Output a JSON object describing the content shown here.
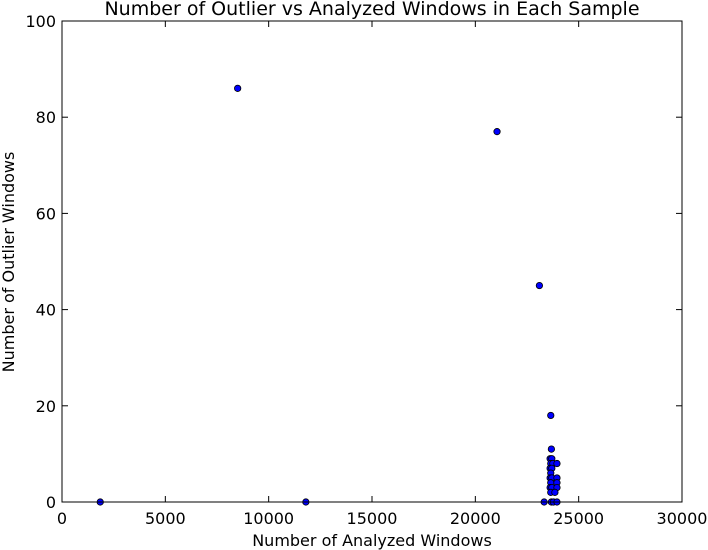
{
  "chart_data": {
    "type": "scatter",
    "title": "Number of Outlier vs Analyzed Windows in Each Sample",
    "xlabel": "Number of Analyzed Windows",
    "ylabel": "Number of Outlier Windows",
    "xlim": [
      0,
      30000
    ],
    "ylim": [
      0,
      100
    ],
    "x_ticks": [
      0,
      5000,
      10000,
      15000,
      20000,
      25000,
      30000
    ],
    "y_ticks": [
      0,
      20,
      40,
      60,
      80,
      100
    ],
    "x_tick_labels": [
      "0",
      "5000",
      "10000",
      "15000",
      "20000",
      "25000",
      "30000"
    ],
    "y_tick_labels": [
      "0",
      "20",
      "40",
      "60",
      "80",
      "100"
    ],
    "grid": false,
    "legend": "none",
    "marker_color": "#0000ff",
    "marker_edge_color": "#000000",
    "points": [
      {
        "x": 1850,
        "y": 0
      },
      {
        "x": 8500,
        "y": 86
      },
      {
        "x": 11800,
        "y": 0
      },
      {
        "x": 21050,
        "y": 77
      },
      {
        "x": 23100,
        "y": 45
      },
      {
        "x": 23650,
        "y": 18
      },
      {
        "x": 23680,
        "y": 11
      },
      {
        "x": 23620,
        "y": 9
      },
      {
        "x": 23700,
        "y": 9
      },
      {
        "x": 23650,
        "y": 8
      },
      {
        "x": 23750,
        "y": 8
      },
      {
        "x": 23950,
        "y": 8
      },
      {
        "x": 23620,
        "y": 7
      },
      {
        "x": 23700,
        "y": 7
      },
      {
        "x": 23650,
        "y": 6
      },
      {
        "x": 23620,
        "y": 5
      },
      {
        "x": 23700,
        "y": 5
      },
      {
        "x": 23950,
        "y": 5
      },
      {
        "x": 23650,
        "y": 4
      },
      {
        "x": 23950,
        "y": 4
      },
      {
        "x": 23620,
        "y": 3
      },
      {
        "x": 23700,
        "y": 3
      },
      {
        "x": 23950,
        "y": 3
      },
      {
        "x": 23650,
        "y": 2
      },
      {
        "x": 23850,
        "y": 2
      },
      {
        "x": 23330,
        "y": 0
      },
      {
        "x": 23680,
        "y": 0
      },
      {
        "x": 23780,
        "y": 0
      },
      {
        "x": 23950,
        "y": 0
      }
    ]
  }
}
